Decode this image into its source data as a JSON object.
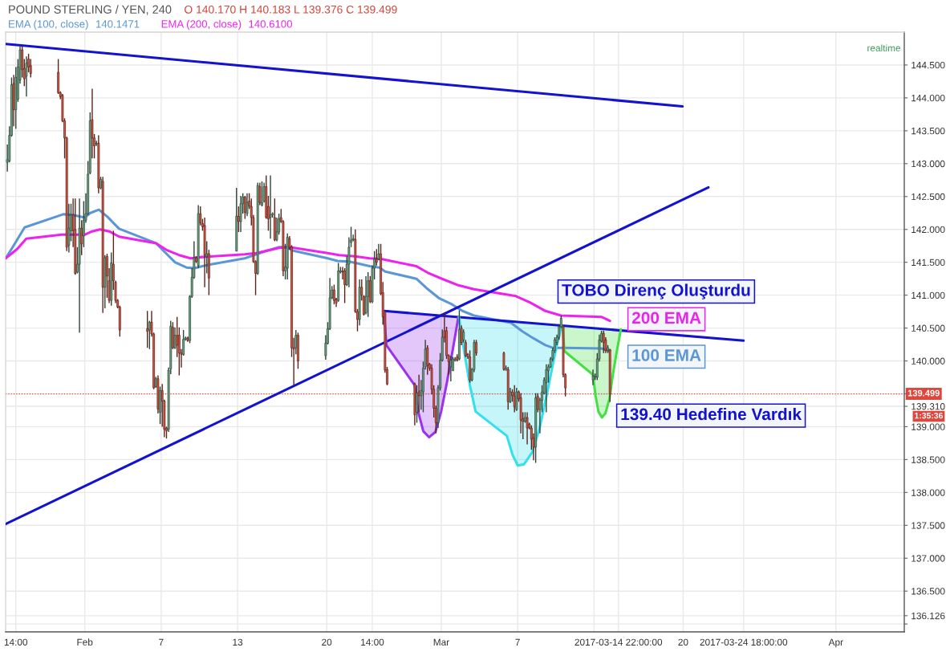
{
  "chart_data": {
    "type": "candlestick",
    "title": "POUND STERLING / YEN, 240",
    "subtitle": "O 140.170 H 140.183 L 139.376 C 139.499",
    "x": [
      "2017-01-25T22:00",
      "2017-01-26T02:00",
      "2017-01-26T06:00",
      "2017-01-26T10:00",
      "2017-01-26T14:00",
      "2017-01-26T18:00",
      "2017-01-26T22:00",
      "2017-01-27T02:00",
      "2017-01-27T06:00",
      "2017-01-27T10:00",
      "2017-01-27T14:00",
      "2017-01-27T18:00",
      "2017-01-29T22:00",
      "2017-01-30T02:00",
      "2017-01-30T06:00",
      "2017-01-30T10:00",
      "2017-01-30T14:00",
      "2017-01-30T18:00",
      "2017-01-30T22:00",
      "2017-01-31T02:00",
      "2017-01-31T06:00",
      "2017-01-31T10:00",
      "2017-01-31T14:00",
      "2017-01-31T18:00",
      "2017-01-31T22:00",
      "2017-02-01T02:00",
      "2017-02-01T06:00",
      "2017-02-01T10:00",
      "2017-02-01T14:00",
      "2017-02-01T18:00",
      "2017-02-01T22:00",
      "2017-02-02T02:00",
      "2017-02-02T06:00",
      "2017-02-02T10:00",
      "2017-02-02T14:00",
      "2017-02-02T18:00",
      "2017-02-02T22:00",
      "2017-02-03T02:00",
      "2017-02-03T06:00",
      "2017-02-03T10:00",
      "2017-02-03T14:00",
      "2017-02-03T18:00",
      "2017-02-05T22:00",
      "2017-02-06T02:00",
      "2017-02-06T06:00",
      "2017-02-06T10:00",
      "2017-02-06T14:00",
      "2017-02-06T18:00",
      "2017-02-06T22:00",
      "2017-02-07T02:00",
      "2017-02-07T06:00",
      "2017-02-07T10:00",
      "2017-02-07T14:00",
      "2017-02-07T18:00",
      "2017-02-07T22:00",
      "2017-02-08T02:00",
      "2017-02-08T06:00",
      "2017-02-08T10:00",
      "2017-02-08T14:00",
      "2017-02-08T18:00",
      "2017-02-08T22:00",
      "2017-02-09T02:00",
      "2017-02-09T06:00",
      "2017-02-09T10:00",
      "2017-02-09T14:00",
      "2017-02-09T18:00",
      "2017-02-09T22:00",
      "2017-02-10T02:00",
      "2017-02-10T06:00",
      "2017-02-10T10:00",
      "2017-02-10T14:00",
      "2017-02-10T18:00",
      "2017-02-12T22:00",
      "2017-02-13T02:00",
      "2017-02-13T06:00",
      "2017-02-13T10:00",
      "2017-02-13T14:00",
      "2017-02-13T18:00",
      "2017-02-13T22:00",
      "2017-02-14T02:00",
      "2017-02-14T06:00",
      "2017-02-14T10:00",
      "2017-02-14T14:00",
      "2017-02-14T18:00",
      "2017-02-14T22:00",
      "2017-02-15T02:00",
      "2017-02-15T06:00",
      "2017-02-15T10:00",
      "2017-02-15T14:00",
      "2017-02-15T18:00",
      "2017-02-15T22:00",
      "2017-02-16T02:00",
      "2017-02-16T06:00",
      "2017-02-16T10:00",
      "2017-02-16T14:00",
      "2017-02-16T18:00",
      "2017-02-16T22:00",
      "2017-02-17T02:00",
      "2017-02-17T06:00",
      "2017-02-17T10:00",
      "2017-02-17T14:00",
      "2017-02-17T18:00",
      "2017-02-19T22:00",
      "2017-02-20T02:00",
      "2017-02-20T06:00",
      "2017-02-20T10:00",
      "2017-02-20T14:00",
      "2017-02-20T18:00",
      "2017-02-20T22:00",
      "2017-02-21T02:00",
      "2017-02-21T06:00",
      "2017-02-21T10:00",
      "2017-02-21T14:00",
      "2017-02-21T18:00",
      "2017-02-21T22:00",
      "2017-02-22T02:00",
      "2017-02-22T06:00",
      "2017-02-22T10:00",
      "2017-02-22T14:00",
      "2017-02-22T18:00",
      "2017-02-22T22:00",
      "2017-02-23T02:00",
      "2017-02-23T06:00",
      "2017-02-23T10:00",
      "2017-02-23T14:00",
      "2017-02-23T18:00",
      "2017-02-23T22:00",
      "2017-02-24T02:00",
      "2017-02-24T06:00",
      "2017-02-24T10:00",
      "2017-02-24T14:00",
      "2017-02-24T18:00",
      "2017-02-26T22:00",
      "2017-02-27T02:00",
      "2017-02-27T06:00",
      "2017-02-27T10:00",
      "2017-02-27T14:00",
      "2017-02-27T18:00",
      "2017-02-27T22:00",
      "2017-02-28T02:00",
      "2017-02-28T06:00",
      "2017-02-28T10:00",
      "2017-02-28T14:00",
      "2017-02-28T18:00",
      "2017-02-28T22:00",
      "2017-03-01T02:00",
      "2017-03-01T06:00",
      "2017-03-01T10:00",
      "2017-03-01T14:00",
      "2017-03-01T18:00",
      "2017-03-01T22:00",
      "2017-03-02T02:00",
      "2017-03-02T06:00",
      "2017-03-02T10:00",
      "2017-03-02T14:00",
      "2017-03-02T18:00",
      "2017-03-02T22:00",
      "2017-03-03T02:00",
      "2017-03-03T06:00",
      "2017-03-03T10:00",
      "2017-03-03T14:00",
      "2017-03-03T18:00",
      "2017-03-05T22:00",
      "2017-03-06T02:00",
      "2017-03-06T06:00",
      "2017-03-06T10:00",
      "2017-03-06T14:00",
      "2017-03-06T18:00",
      "2017-03-06T22:00",
      "2017-03-07T02:00",
      "2017-03-07T06:00",
      "2017-03-07T10:00",
      "2017-03-07T14:00",
      "2017-03-07T18:00",
      "2017-03-07T22:00",
      "2017-03-08T02:00",
      "2017-03-08T06:00",
      "2017-03-08T10:00",
      "2017-03-08T14:00",
      "2017-03-08T18:00",
      "2017-03-08T22:00",
      "2017-03-09T02:00",
      "2017-03-09T06:00",
      "2017-03-09T10:00",
      "2017-03-09T14:00",
      "2017-03-09T18:00",
      "2017-03-09T22:00",
      "2017-03-10T02:00",
      "2017-03-10T06:00",
      "2017-03-10T10:00",
      "2017-03-10T14:00",
      "2017-03-10T18:00",
      "2017-03-12T22:00",
      "2017-03-13T02:00",
      "2017-03-13T06:00",
      "2017-03-13T10:00",
      "2017-03-13T14:00",
      "2017-03-13T18:00",
      "2017-03-13T22:00",
      "2017-03-14T02:00",
      "2017-03-14T06:00"
    ],
    "ohlc": [
      [
        143.02,
        143.29,
        142.88,
        143.06
      ],
      [
        143.04,
        143.57,
        143.02,
        143.43
      ],
      [
        143.43,
        144.31,
        143.41,
        144.2
      ],
      [
        144.22,
        144.35,
        143.57,
        143.82
      ],
      [
        143.82,
        144.47,
        143.53,
        144.31
      ],
      [
        143.98,
        144.59,
        143.94,
        144.47
      ],
      [
        144.27,
        144.78,
        144.22,
        144.73
      ],
      [
        144.73,
        144.78,
        144.31,
        144.43
      ],
      [
        144.45,
        144.59,
        144.18,
        144.29
      ],
      [
        144.33,
        144.63,
        144.02,
        144.53
      ],
      [
        144.59,
        144.67,
        144.39,
        144.47
      ],
      [
        144.49,
        144.59,
        144.31,
        144.37
      ],
      [
        144.39,
        144.59,
        144.06,
        144.08
      ],
      [
        144.08,
        144.1,
        143.98,
        144.02
      ],
      [
        144.04,
        144.06,
        143.63,
        143.65
      ],
      [
        143.65,
        143.69,
        143.08,
        143.39
      ],
      [
        143.39,
        143.41,
        141.67,
        141.73
      ],
      [
        141.76,
        142.39,
        141.65,
        142.02
      ],
      [
        141.98,
        142.39,
        141.82,
        142.22
      ],
      [
        142.22,
        142.47,
        141.73,
        141.98
      ],
      [
        142.0,
        142.47,
        141.31,
        141.33
      ],
      [
        141.35,
        141.73,
        141.33,
        141.47
      ],
      [
        141.47,
        142.47,
        140.43,
        142.02
      ],
      [
        142.02,
        142.14,
        141.61,
        141.78
      ],
      [
        141.9,
        142.43,
        141.73,
        142.14
      ],
      [
        142.14,
        142.55,
        142.1,
        142.24
      ],
      [
        142.24,
        143.04,
        142.22,
        142.84
      ],
      [
        142.86,
        143.78,
        142.84,
        143.65
      ],
      [
        143.67,
        144.14,
        143.08,
        143.39
      ],
      [
        143.39,
        143.45,
        143.08,
        143.27
      ],
      [
        143.3,
        143.35,
        143.27,
        143.31
      ],
      [
        143.31,
        143.43,
        142.55,
        142.63
      ],
      [
        142.63,
        142.8,
        142.61,
        142.76
      ],
      [
        142.73,
        142.8,
        140.73,
        141.12
      ],
      [
        141.12,
        141.61,
        140.8,
        141.57
      ],
      [
        141.59,
        141.63,
        140.96,
        141.29
      ],
      [
        141.22,
        141.41,
        140.88,
        140.92
      ],
      [
        140.92,
        141.65,
        140.84,
        141.49
      ],
      [
        141.47,
        141.98,
        141.08,
        141.22
      ],
      [
        141.2,
        141.22,
        140.88,
        140.92
      ],
      [
        140.92,
        140.94,
        140.8,
        140.82
      ],
      [
        140.82,
        140.84,
        140.37,
        140.47
      ],
      [
        140.49,
        140.76,
        140.2,
        140.45
      ],
      [
        140.47,
        140.61,
        140.18,
        140.59
      ],
      [
        140.59,
        140.76,
        140.37,
        140.41
      ],
      [
        140.41,
        140.43,
        139.57,
        139.59
      ],
      [
        139.61,
        139.76,
        139.59,
        139.73
      ],
      [
        139.73,
        139.78,
        139.2,
        139.27
      ],
      [
        139.22,
        139.61,
        139.04,
        139.55
      ],
      [
        139.55,
        139.65,
        139.0,
        139.39
      ],
      [
        139.39,
        139.41,
        138.84,
        138.96
      ],
      [
        138.98,
        139.0,
        138.82,
        138.94
      ],
      [
        138.96,
        139.9,
        138.92,
        139.86
      ],
      [
        139.88,
        140.61,
        139.8,
        140.53
      ],
      [
        140.51,
        140.59,
        140.18,
        140.2
      ],
      [
        140.2,
        140.51,
        140.18,
        140.39
      ],
      [
        140.39,
        140.67,
        140.06,
        140.24
      ],
      [
        140.39,
        140.51,
        139.78,
        140.12
      ],
      [
        140.12,
        140.18,
        139.9,
        140.1
      ],
      [
        140.1,
        140.47,
        140.08,
        140.33
      ],
      [
        140.33,
        140.37,
        140.31,
        140.35
      ],
      [
        140.35,
        140.37,
        140.29,
        140.31
      ],
      [
        140.31,
        141.0,
        140.27,
        140.98
      ],
      [
        140.98,
        141.41,
        140.96,
        141.27
      ],
      [
        141.27,
        141.82,
        141.25,
        141.57
      ],
      [
        141.57,
        141.59,
        141.49,
        141.51
      ],
      [
        141.45,
        142.37,
        141.41,
        142.24
      ],
      [
        142.24,
        142.35,
        142.06,
        142.1
      ],
      [
        142.09,
        142.16,
        141.98,
        142.04
      ],
      [
        142.06,
        142.18,
        141.12,
        141.61
      ],
      [
        141.59,
        141.82,
        141.33,
        141.63
      ],
      [
        141.63,
        141.69,
        141.0,
        141.26
      ],
      [
        141.67,
        142.63,
        141.67,
        142.2
      ],
      [
        142.2,
        142.35,
        141.96,
        142.12
      ],
      [
        142.12,
        142.51,
        141.96,
        142.39
      ],
      [
        142.39,
        142.55,
        142.24,
        142.49
      ],
      [
        142.49,
        142.51,
        142.16,
        142.26
      ],
      [
        142.24,
        142.55,
        142.2,
        142.41
      ],
      [
        142.43,
        142.55,
        142.31,
        142.35
      ],
      [
        142.35,
        142.47,
        142.06,
        142.18
      ],
      [
        142.18,
        142.22,
        141.49,
        141.51
      ],
      [
        141.51,
        141.53,
        141.0,
        141.33
      ],
      [
        141.33,
        142.71,
        141.31,
        142.67
      ],
      [
        142.65,
        142.71,
        142.37,
        142.41
      ],
      [
        142.37,
        142.73,
        142.35,
        142.41
      ],
      [
        142.43,
        142.71,
        142.41,
        142.65
      ],
      [
        142.65,
        142.82,
        142.16,
        142.18
      ],
      [
        142.35,
        142.51,
        141.98,
        142.16
      ],
      [
        142.18,
        142.82,
        141.86,
        142.22
      ],
      [
        142.22,
        142.26,
        142.18,
        142.24
      ],
      [
        142.18,
        142.47,
        141.82,
        141.84
      ],
      [
        141.84,
        142.18,
        141.82,
        141.96
      ],
      [
        141.96,
        142.24,
        141.92,
        142.16
      ],
      [
        142.18,
        142.31,
        142.1,
        142.12
      ],
      [
        142.12,
        142.14,
        141.29,
        141.37
      ],
      [
        141.37,
        141.78,
        141.24,
        141.43
      ],
      [
        141.41,
        141.94,
        141.24,
        141.88
      ],
      [
        141.86,
        141.9,
        141.69,
        141.73
      ],
      [
        141.73,
        141.76,
        140.06,
        140.2
      ],
      [
        140.2,
        140.35,
        139.63,
        140.18
      ],
      [
        140.2,
        140.47,
        140.1,
        140.39
      ],
      [
        140.39,
        140.43,
        139.88,
        140.0
      ],
      [
        140.08,
        140.39,
        140.02,
        140.27
      ],
      [
        140.27,
        140.59,
        140.25,
        140.49
      ],
      [
        140.49,
        141.26,
        140.47,
        140.96
      ],
      [
        140.96,
        141.14,
        140.94,
        141.08
      ],
      [
        141.08,
        141.16,
        140.86,
        140.92
      ],
      [
        140.94,
        140.96,
        140.82,
        140.88
      ],
      [
        140.92,
        141.49,
        140.9,
        141.37
      ],
      [
        141.35,
        141.43,
        141.33,
        141.37
      ],
      [
        141.37,
        141.43,
        141.24,
        141.35
      ],
      [
        141.37,
        141.41,
        140.88,
        141.16
      ],
      [
        141.16,
        141.59,
        141.14,
        141.47
      ],
      [
        141.47,
        141.88,
        141.12,
        141.73
      ],
      [
        141.8,
        142.04,
        141.73,
        141.84
      ],
      [
        141.84,
        141.92,
        141.82,
        141.86
      ],
      [
        141.85,
        142.0,
        140.73,
        140.75
      ],
      [
        140.75,
        140.79,
        140.45,
        140.63
      ],
      [
        140.63,
        141.24,
        140.54,
        141.12
      ],
      [
        141.12,
        141.24,
        140.92,
        141.0
      ],
      [
        140.98,
        141.0,
        140.69,
        140.71
      ],
      [
        140.73,
        141.29,
        140.71,
        140.98
      ],
      [
        140.98,
        141.35,
        140.67,
        141.22
      ],
      [
        141.22,
        141.29,
        140.88,
        140.9
      ],
      [
        140.9,
        141.45,
        140.88,
        141.41
      ],
      [
        141.41,
        141.67,
        141.24,
        141.55
      ],
      [
        141.55,
        141.7,
        141.45,
        141.5
      ],
      [
        141.55,
        141.78,
        141.53,
        141.63
      ],
      [
        141.63,
        141.78,
        141.0,
        141.02
      ],
      [
        141.04,
        141.2,
        140.55,
        140.67
      ],
      [
        140.75,
        140.75,
        139.82,
        139.86
      ],
      [
        139.87,
        139.91,
        139.63,
        139.65
      ],
      [
        139.65,
        139.67,
        139.02,
        139.18
      ],
      [
        139.22,
        139.63,
        139.06,
        139.51
      ],
      [
        139.53,
        139.79,
        139.22,
        139.47
      ],
      [
        139.47,
        139.71,
        139.26,
        139.55
      ],
      [
        139.53,
        139.99,
        139.22,
        139.89
      ],
      [
        139.91,
        140.32,
        139.87,
        140.18
      ],
      [
        140.2,
        140.24,
        139.79,
        139.93
      ],
      [
        139.95,
        139.97,
        139.85,
        139.89
      ],
      [
        139.89,
        139.95,
        139.49,
        139.57
      ],
      [
        139.57,
        139.63,
        139.14,
        139.28
      ],
      [
        139.28,
        139.32,
        138.9,
        139.06
      ],
      [
        139.06,
        139.63,
        138.98,
        139.59
      ],
      [
        139.59,
        140.12,
        139.55,
        140.01
      ],
      [
        140.01,
        140.48,
        139.99,
        140.36
      ],
      [
        140.46,
        140.73,
        140.28,
        140.36
      ],
      [
        140.46,
        140.52,
        140.03,
        140.08
      ],
      [
        140.08,
        140.1,
        139.79,
        139.99
      ],
      [
        139.91,
        140.08,
        139.69,
        140.01
      ],
      [
        139.85,
        140.06,
        139.85,
        140.03
      ],
      [
        140.01,
        140.06,
        139.99,
        140.03
      ],
      [
        140.06,
        140.1,
        139.99,
        140.01
      ],
      [
        140.03,
        140.77,
        140.01,
        140.48
      ],
      [
        140.5,
        140.54,
        140.24,
        140.28
      ],
      [
        140.32,
        140.48,
        140.28,
        140.44
      ],
      [
        140.28,
        140.32,
        140.06,
        140.08
      ],
      [
        140.1,
        140.12,
        140.03,
        140.06
      ],
      [
        140.06,
        140.16,
        139.67,
        139.71
      ],
      [
        139.71,
        139.89,
        139.69,
        139.87
      ],
      [
        139.87,
        140.32,
        139.83,
        140.28
      ],
      [
        140.28,
        140.32,
        140.08,
        140.12
      ],
      [
        140.12,
        140.14,
        139.85,
        139.87
      ],
      [
        139.87,
        139.93,
        139.85,
        139.89
      ],
      [
        139.87,
        139.91,
        139.26,
        139.38
      ],
      [
        139.38,
        139.59,
        139.36,
        139.53
      ],
      [
        139.53,
        139.57,
        139.38,
        139.47
      ],
      [
        139.47,
        139.63,
        139.22,
        139.3
      ],
      [
        139.26,
        139.59,
        139.24,
        139.53
      ],
      [
        139.53,
        139.55,
        139.38,
        139.42
      ],
      [
        139.44,
        139.51,
        138.9,
        139.1
      ],
      [
        139.12,
        139.22,
        138.81,
        139.08
      ],
      [
        139.08,
        139.22,
        139.06,
        139.14
      ],
      [
        139.14,
        139.22,
        138.73,
        138.98
      ],
      [
        139.04,
        139.06,
        138.96,
        138.98
      ],
      [
        138.98,
        139.02,
        138.65,
        138.81
      ],
      [
        138.83,
        138.9,
        138.49,
        138.69
      ],
      [
        138.69,
        139.51,
        138.45,
        139.44
      ],
      [
        139.46,
        139.51,
        139.22,
        139.26
      ],
      [
        139.26,
        139.44,
        138.9,
        139.4
      ],
      [
        139.4,
        139.63,
        139.22,
        139.53
      ],
      [
        139.51,
        139.75,
        139.49,
        139.71
      ],
      [
        139.67,
        139.95,
        139.22,
        139.87
      ],
      [
        139.85,
        139.95,
        139.67,
        139.91
      ],
      [
        139.91,
        140.06,
        139.89,
        140.03
      ],
      [
        140.03,
        140.2,
        139.99,
        140.16
      ],
      [
        140.16,
        140.36,
        140.12,
        140.32
      ],
      [
        140.28,
        140.4,
        140.24,
        140.36
      ],
      [
        140.36,
        140.56,
        140.32,
        140.52
      ],
      [
        140.52,
        140.69,
        140.5,
        140.65
      ],
      [
        140.52,
        140.54,
        139.75,
        139.79
      ],
      [
        139.79,
        139.81,
        139.46,
        139.59
      ],
      [
        139.71,
        139.87,
        139.63,
        139.77
      ],
      [
        139.75,
        139.81,
        139.71,
        139.77
      ],
      [
        139.75,
        140.12,
        139.71,
        140.03
      ],
      [
        140.03,
        140.4,
        139.99,
        140.32
      ],
      [
        140.3,
        140.46,
        140.28,
        140.42
      ],
      [
        140.42,
        140.46,
        140.12,
        140.28
      ],
      [
        140.32,
        140.36,
        140.12,
        140.16
      ],
      [
        140.16,
        140.24,
        140.12,
        140.2
      ],
      [
        140.17,
        140.183,
        139.376,
        139.499
      ]
    ],
    "colors": [
      "#6ba583",
      "#6ba583",
      "#6ba583",
      "#d75442",
      "#6ba583",
      "#6ba583",
      "#6ba583",
      "#d75442",
      "#d75442",
      "#6ba583",
      "#d75442",
      "#d75442",
      "#d75442",
      "#d75442",
      "#d75442",
      "#d75442",
      "#d75442",
      "#6ba583",
      "#6ba583",
      "#d75442",
      "#d75442",
      "#6ba583",
      "#6ba583",
      "#d75442",
      "#6ba583",
      "#6ba583",
      "#6ba583",
      "#6ba583",
      "#d75442",
      "#d75442",
      "#6ba583",
      "#d75442",
      "#6ba583",
      "#d75442",
      "#6ba583",
      "#d75442",
      "#d75442",
      "#6ba583",
      "#d75442",
      "#d75442",
      "#d75442",
      "#d75442",
      "#d75442",
      "#6ba583",
      "#d75442",
      "#d75442",
      "#6ba583",
      "#d75442",
      "#6ba583",
      "#d75442",
      "#d75442",
      "#d75442",
      "#6ba583",
      "#6ba583",
      "#d75442",
      "#6ba583",
      "#d75442",
      "#d75442",
      "#d75442",
      "#6ba583",
      "#6ba583",
      "#d75442",
      "#6ba583",
      "#6ba583",
      "#6ba583",
      "#d75442",
      "#6ba583",
      "#d75442",
      "#d75442",
      "#d75442",
      "#6ba583",
      "#d75442",
      "#6ba583",
      "#d75442",
      "#6ba583",
      "#6ba583",
      "#d75442",
      "#6ba583",
      "#d75442",
      "#d75442",
      "#d75442",
      "#d75442",
      "#6ba583",
      "#d75442",
      "#6ba583",
      "#6ba583",
      "#d75442",
      "#d75442",
      "#6ba583",
      "#6ba583",
      "#d75442",
      "#6ba583",
      "#6ba583",
      "#d75442",
      "#d75442",
      "#6ba583",
      "#6ba583",
      "#d75442",
      "#d75442",
      "#d75442",
      "#6ba583",
      "#d75442",
      "#6ba583",
      "#6ba583",
      "#6ba583",
      "#6ba583",
      "#d75442",
      "#d75442",
      "#6ba583",
      "#6ba583",
      "#d75442",
      "#d75442",
      "#6ba583",
      "#6ba583",
      "#6ba583",
      "#6ba583",
      "#d75442",
      "#d75442",
      "#6ba583",
      "#d75442",
      "#d75442",
      "#6ba583",
      "#6ba583",
      "#d75442",
      "#6ba583",
      "#6ba583",
      "#d75442",
      "#6ba583",
      "#d75442",
      "#d75442",
      "#d75442",
      "#d75442",
      "#d75442",
      "#6ba583",
      "#d75442",
      "#6ba583",
      "#6ba583",
      "#6ba583",
      "#d75442",
      "#d75442",
      "#d75442",
      "#d75442",
      "#d75442",
      "#6ba583",
      "#6ba583",
      "#6ba583",
      "#d75442",
      "#d75442",
      "#d75442",
      "#6ba583",
      "#6ba583",
      "#6ba583",
      "#d75442",
      "#6ba583",
      "#d75442",
      "#6ba583",
      "#d75442",
      "#d75442",
      "#d75442",
      "#6ba583",
      "#6ba583",
      "#d75442",
      "#d75442",
      "#6ba583",
      "#d75442",
      "#6ba583",
      "#d75442",
      "#d75442",
      "#6ba583",
      "#d75442",
      "#d75442",
      "#d75442",
      "#6ba583",
      "#d75442",
      "#d75442",
      "#d75442",
      "#d75442",
      "#6ba583",
      "#d75442",
      "#6ba583",
      "#6ba583",
      "#6ba583",
      "#6ba583",
      "#6ba583",
      "#6ba583",
      "#6ba583",
      "#6ba583",
      "#6ba583",
      "#6ba583",
      "#6ba583",
      "#d75442",
      "#d75442",
      "#6ba583",
      "#6ba583",
      "#6ba583",
      "#6ba583",
      "#6ba583",
      "#d75442",
      "#d75442",
      "#6ba583",
      "#d75442"
    ],
    "series": [
      {
        "name": "EMA (100, close)",
        "type": "line",
        "color": "#5b96d6",
        "x": [
          "2017-01-25T18:45",
          "2017-01-26T08:50",
          "2017-01-27T06:30",
          "2017-01-30T07:26",
          "2017-01-31T01:54",
          "2017-01-31T23:34",
          "2017-02-01T10:26",
          "2017-02-02T02:41",
          "2017-02-02T18:55",
          "2017-02-03T16:36",
          "2017-02-06T14:17",
          "2017-02-07T08:43",
          "2017-02-08T02:03",
          "2017-02-08T23:43",
          "2017-02-09T14:55",
          "2017-02-10T15:50",
          "2017-02-13T13:31",
          "2017-02-14T11:12",
          "2017-02-15T08:53",
          "2017-02-16T06:34",
          "2017-02-16T20:38",
          "2017-02-17T07:29",
          "2017-02-20T01:55",
          "2017-02-20T20:22",
          "2017-02-21T18:02",
          "2017-02-22T11:22",
          "2017-02-23T09:02",
          "2017-02-24T03:29",
          "2017-02-24T14:19",
          "2017-02-27T01:10",
          "2017-02-27T22:50",
          "2017-02-28T20:31",
          "2017-03-01T18:12",
          "2017-03-02T15:53",
          "2017-03-03T13:34",
          "2017-03-06T11:14",
          "2017-03-07T08:55",
          "2017-03-08T06:36",
          "2017-03-09T04:17",
          "2017-03-09T18:22",
          "2017-03-10T16:02",
          "2017-03-13T13:43",
          "2017-03-14T06:00"
        ],
        "values": [
          141.56,
          141.74,
          142.03,
          142.23,
          142.22,
          142.18,
          142.25,
          142.3,
          142.19,
          142.01,
          141.79,
          141.64,
          141.5,
          141.42,
          141.41,
          141.46,
          141.56,
          141.62,
          141.68,
          141.73,
          141.73,
          141.68,
          141.56,
          141.52,
          141.51,
          141.48,
          141.44,
          141.42,
          141.36,
          141.25,
          141.09,
          140.95,
          140.87,
          140.76,
          140.69,
          140.58,
          140.45,
          140.34,
          140.24,
          140.2,
          140.2,
          140.19,
          140.15
        ]
      },
      {
        "name": "EMA (200, close)",
        "type": "line",
        "color": "#ee22ee",
        "x": [
          "2017-01-25T18:45",
          "2017-01-26T16:26",
          "2017-01-27T09:46",
          "2017-01-30T04:12",
          "2017-01-31T09:29",
          "2017-01-31T23:34",
          "2017-02-01T13:38",
          "2017-02-02T04:50",
          "2017-02-02T22:10",
          "2017-02-03T16:36",
          "2017-02-06T14:17",
          "2017-02-07T11:57",
          "2017-02-08T09:38",
          "2017-02-09T07:19",
          "2017-02-10T05:00",
          "2017-02-13T13:31",
          "2017-02-14T11:12",
          "2017-02-15T08:53",
          "2017-02-16T06:34",
          "2017-02-17T01:00",
          "2017-02-20T01:55",
          "2017-02-20T23:36",
          "2017-02-22T04:53",
          "2017-02-23T09:02",
          "2017-02-24T06:43",
          "2017-02-27T01:10",
          "2017-02-27T22:50",
          "2017-03-01T04:07",
          "2017-03-02T08:17",
          "2017-03-03T13:34",
          "2017-03-06T18:50",
          "2017-03-07T23:00",
          "2017-03-09T04:17",
          "2017-03-10T09:34",
          "2017-03-13T13:43",
          "2017-03-14T06:00"
        ],
        "values": [
          141.56,
          141.7,
          141.86,
          141.92,
          141.92,
          141.92,
          141.97,
          142.0,
          141.97,
          141.89,
          141.79,
          141.68,
          141.61,
          141.56,
          141.58,
          141.62,
          141.64,
          141.68,
          141.72,
          141.73,
          141.64,
          141.61,
          141.59,
          141.56,
          141.55,
          141.44,
          141.34,
          141.24,
          141.15,
          141.09,
          140.99,
          140.89,
          140.76,
          140.69,
          140.67,
          140.61
        ]
      },
      {
        "type": "line",
        "color": "#1212d0",
        "x": [
          "2017-01-25T18:45",
          "2017-03-19T22:48"
        ],
        "values": [
          144.82,
          143.87
        ]
      },
      {
        "type": "line",
        "color": "#1212d0",
        "x": [
          "2017-01-25T18:45",
          "2017-03-21T23:41"
        ],
        "values": [
          137.52,
          142.64
        ]
      },
      {
        "type": "line",
        "color": "#1212d0",
        "x": [
          "2017-02-24T12:00",
          "2017-03-24T18:00"
        ],
        "values": [
          140.76,
          140.31
        ]
      },
      {
        "type": "line",
        "color": "#9933ee",
        "x": [
          "2017-02-24T12:00",
          "2017-02-24T16:29",
          "2017-02-26T22:00",
          "2017-02-27T04:26",
          "2017-02-27T14:10",
          "2017-02-28T01:00",
          "2017-02-28T12:55",
          "2017-02-28T23:46",
          "2017-03-01T10:36",
          "2017-03-01T21:26",
          "2017-03-02T08:17"
        ],
        "values": [
          140.75,
          140.24,
          139.63,
          139.23,
          138.93,
          138.84,
          138.92,
          139.23,
          139.67,
          140.16,
          140.67
        ],
        "lower": [
          140.75,
          140.24,
          139.63,
          139.23,
          138.93,
          138.84,
          138.92,
          139.23,
          139.67,
          140.16,
          140.67
        ],
        "upper": [
          140.75,
          140.75,
          140.74,
          140.74,
          140.73,
          140.72,
          140.71,
          140.7,
          140.69,
          140.68,
          140.67
        ]
      },
      {
        "type": "line",
        "color": "#33e0ee",
        "x": [
          "2017-03-02T09:24",
          "2017-03-02T19:07",
          "2017-03-03T05:58",
          "2017-03-03T16:48",
          "2017-03-06T03:38",
          "2017-03-06T14:29",
          "2017-03-07T00:14",
          "2017-03-07T12:10",
          "2017-03-08T03:22",
          "2017-03-08T17:26",
          "2017-03-09T07:31",
          "2017-03-09T22:43",
          "2017-03-10T10:38"
        ],
        "values": [
          140.67,
          140.15,
          139.63,
          139.23,
          138.86,
          138.57,
          138.41,
          138.43,
          138.61,
          138.98,
          139.51,
          140.12,
          140.54
        ],
        "lower": [
          140.67,
          140.15,
          139.63,
          139.23,
          138.86,
          138.57,
          138.41,
          138.43,
          138.61,
          138.98,
          139.51,
          140.12,
          140.54
        ],
        "upper": [
          140.67,
          140.66,
          140.65,
          140.64,
          140.63,
          140.62,
          140.61,
          140.6,
          140.59,
          140.58,
          140.56,
          140.55,
          140.54
        ]
      },
      {
        "type": "line",
        "color": "#44e044",
        "x": [
          "2017-03-10T12:48",
          "2017-03-10T16:02",
          "2017-03-12T22:00",
          "2017-03-13T02:53",
          "2017-03-13T08:19",
          "2017-03-13T14:50",
          "2017-03-13T21:19",
          "2017-03-14T04:55",
          "2017-03-14T11:26",
          "2017-03-14T19:00",
          "2017-03-15T02:36"
        ],
        "values": [
          140.52,
          140.15,
          139.79,
          139.47,
          139.23,
          139.14,
          139.2,
          139.42,
          139.79,
          140.15,
          140.48
        ],
        "lower": [
          140.52,
          140.15,
          139.79,
          139.47,
          139.23,
          139.14,
          139.2,
          139.42,
          139.79,
          140.15,
          140.48
        ],
        "upper": [
          140.52,
          140.52,
          140.51,
          140.51,
          140.51,
          140.5,
          140.5,
          140.49,
          140.49,
          140.48,
          140.48
        ]
      }
    ],
    "xlim": [
      "2017-01-25T18:45",
      "2017-04-06T08:50"
    ],
    "ylim": [
      135.88,
      145.0
    ],
    "xticks": [
      {
        "value": "2017-01-26T14:00",
        "label": "14:00"
      },
      {
        "value": "2017-02-01",
        "label": "Feb"
      },
      {
        "value": "2017-02-07",
        "label": "7"
      },
      {
        "value": "2017-02-13",
        "label": "13"
      },
      {
        "value": "2017-02-20",
        "label": "20"
      },
      {
        "value": "2017-02-23T14:00",
        "label": "14:00"
      },
      {
        "value": "2017-03-01",
        "label": "Mar"
      },
      {
        "value": "2017-03-07",
        "label": "7"
      },
      {
        "value": "2017-03-13",
        "label": null
      },
      {
        "value": "2017-03-14T22:00",
        "label": "2017-03-14 22:00:00"
      },
      {
        "value": "2017-03-20",
        "label": "20"
      },
      {
        "value": "2017-03-24T18:00",
        "label": "2017-03-24 18:00:00"
      },
      {
        "value": "2017-04-01",
        "label": "Apr"
      }
    ],
    "yticks": [
      {
        "value": 136.0,
        "label": null
      },
      {
        "value": 136.126,
        "label": "136.126"
      },
      {
        "value": 136.5,
        "label": "136.500"
      },
      {
        "value": 137.0,
        "label": "137.000"
      },
      {
        "value": 137.5,
        "label": "137.500"
      },
      {
        "value": 138.0,
        "label": "138.000"
      },
      {
        "value": 138.5,
        "label": "138.500"
      },
      {
        "value": 139.0,
        "label": "139.000"
      },
      {
        "value": 139.31,
        "label": "139.310"
      },
      {
        "value": 139.5,
        "label": null
      },
      {
        "value": 140.0,
        "label": "140.000"
      },
      {
        "value": 140.5,
        "label": "140.500"
      },
      {
        "value": 141.0,
        "label": "141.000"
      },
      {
        "value": 141.5,
        "label": "141.500"
      },
      {
        "value": 142.0,
        "label": "142.000"
      },
      {
        "value": 142.5,
        "label": "142.500"
      },
      {
        "value": 143.0,
        "label": "143.000"
      },
      {
        "value": 143.5,
        "label": "143.500"
      },
      {
        "value": 144.0,
        "label": "144.000"
      },
      {
        "value": 144.5,
        "label": "144.500"
      }
    ],
    "ref_lines": [
      {
        "axis": "y",
        "value": 139.499,
        "label": "139.499",
        "color": "#e0463c",
        "line_style": "dotted"
      }
    ],
    "annotations": [
      "140.1471",
      "140.6100",
      "realtime",
      "1:35:36",
      {
        "text": "TOBO Direnç Oluşturdu",
        "x": "2017-03-24T18:00",
        "y": 140.31
      },
      {
        "text": "200 EMA",
        "x": "2017-03-14T06:00",
        "y": 140.61
      },
      {
        "text": "100 EMA",
        "x": "2017-03-14T06:00",
        "y": 140.15
      },
      {
        "text": "139.40 Hedefine Vardık",
        "x": "2017-03-14T06:00",
        "y": 139.376
      }
    ],
    "grid": true,
    "legend": "top left"
  }
}
